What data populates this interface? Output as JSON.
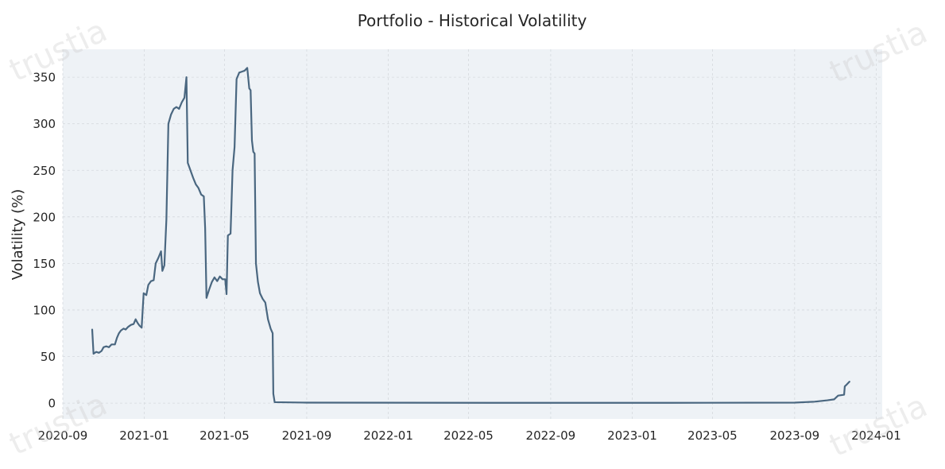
{
  "chart_data": {
    "type": "line",
    "title": "Portfolio - Historical Volatility",
    "xlabel": "",
    "ylabel": "Volatility (%)",
    "ylim": [
      -17,
      380
    ],
    "xlim": [
      "2020-09-01",
      "2024-01-10"
    ],
    "grid": true,
    "x_ticks": [
      "2020-09",
      "2021-01",
      "2021-05",
      "2021-09",
      "2022-01",
      "2022-05",
      "2022-09",
      "2023-01",
      "2023-05",
      "2023-09",
      "2024-01"
    ],
    "y_ticks": [
      0,
      50,
      100,
      150,
      200,
      250,
      300,
      350
    ],
    "series": [
      {
        "color": "#4a6780",
        "points": [
          [
            "2020-10-15",
            79
          ],
          [
            "2020-10-17",
            53
          ],
          [
            "2020-10-21",
            55
          ],
          [
            "2020-10-25",
            54
          ],
          [
            "2020-10-29",
            56
          ],
          [
            "2020-11-01",
            60
          ],
          [
            "2020-11-05",
            61
          ],
          [
            "2020-11-09",
            60
          ],
          [
            "2020-11-13",
            63
          ],
          [
            "2020-11-18",
            63
          ],
          [
            "2020-11-21",
            70
          ],
          [
            "2020-11-24",
            75
          ],
          [
            "2020-11-27",
            78
          ],
          [
            "2020-12-01",
            80
          ],
          [
            "2020-12-04",
            79
          ],
          [
            "2020-12-08",
            82
          ],
          [
            "2020-12-12",
            84
          ],
          [
            "2020-12-16",
            85
          ],
          [
            "2020-12-19",
            90
          ],
          [
            "2020-12-22",
            86
          ],
          [
            "2020-12-25",
            83
          ],
          [
            "2020-12-28",
            81
          ],
          [
            "2020-12-31",
            118
          ],
          [
            "2021-01-04",
            116
          ],
          [
            "2021-01-07",
            127
          ],
          [
            "2021-01-11",
            131
          ],
          [
            "2021-01-15",
            132
          ],
          [
            "2021-01-18",
            150
          ],
          [
            "2021-01-22",
            156
          ],
          [
            "2021-01-26",
            163
          ],
          [
            "2021-01-28",
            142
          ],
          [
            "2021-01-31",
            148
          ],
          [
            "2021-02-03",
            197
          ],
          [
            "2021-02-06",
            300
          ],
          [
            "2021-02-10",
            310
          ],
          [
            "2021-02-14",
            316
          ],
          [
            "2021-02-18",
            318
          ],
          [
            "2021-02-22",
            316
          ],
          [
            "2021-02-26",
            323
          ],
          [
            "2021-03-02",
            328
          ],
          [
            "2021-03-05",
            350
          ],
          [
            "2021-03-07",
            258
          ],
          [
            "2021-03-11",
            250
          ],
          [
            "2021-03-15",
            242
          ],
          [
            "2021-03-19",
            235
          ],
          [
            "2021-03-23",
            231
          ],
          [
            "2021-03-27",
            224
          ],
          [
            "2021-03-31",
            222
          ],
          [
            "2021-04-02",
            188
          ],
          [
            "2021-04-04",
            113
          ],
          [
            "2021-04-08",
            122
          ],
          [
            "2021-04-12",
            130
          ],
          [
            "2021-04-16",
            135
          ],
          [
            "2021-04-20",
            131
          ],
          [
            "2021-04-24",
            136
          ],
          [
            "2021-04-28",
            133
          ],
          [
            "2021-05-02",
            133
          ],
          [
            "2021-05-04",
            117
          ],
          [
            "2021-05-06",
            180
          ],
          [
            "2021-05-10",
            182
          ],
          [
            "2021-05-13",
            250
          ],
          [
            "2021-05-16",
            275
          ],
          [
            "2021-05-19",
            348
          ],
          [
            "2021-05-23",
            355
          ],
          [
            "2021-05-27",
            356
          ],
          [
            "2021-05-31",
            357
          ],
          [
            "2021-06-04",
            360
          ],
          [
            "2021-06-07",
            338
          ],
          [
            "2021-06-09",
            336
          ],
          [
            "2021-06-11",
            282
          ],
          [
            "2021-06-13",
            270
          ],
          [
            "2021-06-15",
            268
          ],
          [
            "2021-06-17",
            150
          ],
          [
            "2021-06-20",
            130
          ],
          [
            "2021-06-23",
            118
          ],
          [
            "2021-06-27",
            112
          ],
          [
            "2021-07-01",
            108
          ],
          [
            "2021-07-05",
            90
          ],
          [
            "2021-07-09",
            80
          ],
          [
            "2021-07-12",
            75
          ],
          [
            "2021-07-13",
            10
          ],
          [
            "2021-07-15",
            1
          ],
          [
            "2021-09-01",
            0.5
          ],
          [
            "2022-06-01",
            0.3
          ],
          [
            "2023-03-01",
            0.3
          ],
          [
            "2023-09-01",
            0.5
          ],
          [
            "2023-10-01",
            1.5
          ],
          [
            "2023-10-20",
            3
          ],
          [
            "2023-10-30",
            4
          ],
          [
            "2023-11-05",
            8
          ],
          [
            "2023-11-14",
            9
          ],
          [
            "2023-11-15",
            18
          ],
          [
            "2023-11-18",
            20
          ],
          [
            "2023-11-22",
            23
          ]
        ]
      }
    ]
  },
  "watermarks": [
    "trustia",
    "trustia",
    "trustia",
    "trustia"
  ]
}
